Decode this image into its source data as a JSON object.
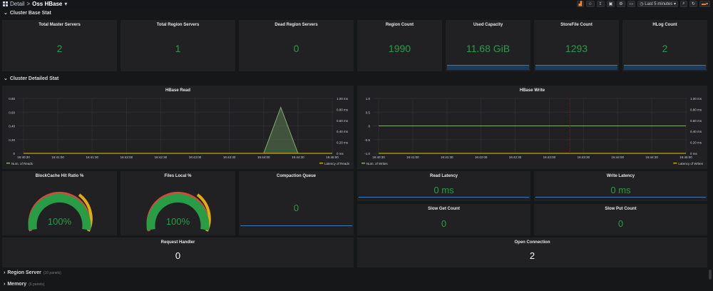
{
  "header": {
    "crumb_root": "Detail",
    "crumb_sep": ">",
    "crumb_title": "Oss HBase",
    "time_range": "Last 5 minutes"
  },
  "rows": {
    "base": "Cluster Base Stat",
    "detailed": "Cluster Detailed Stat",
    "region_server": "Region Server",
    "region_server_count": "(10 panels)",
    "memory": "Memory",
    "memory_count": "(6 panels)"
  },
  "stats": {
    "total_master": {
      "title": "Total Master Servers",
      "value": "2"
    },
    "total_region": {
      "title": "Total Region Servers",
      "value": "1"
    },
    "dead_region": {
      "title": "Dead Region Servers",
      "value": "0"
    },
    "region_count": {
      "title": "Region Count",
      "value": "1990"
    },
    "used_capacity": {
      "title": "Used Capacity",
      "value": "11.68 GiB"
    },
    "storefile_count": {
      "title": "StoreFile Count",
      "value": "1293"
    },
    "hlog_count": {
      "title": "HLog Count",
      "value": "2"
    }
  },
  "charts": {
    "read": {
      "title": "HBase Read",
      "legend_left": "Num. of Reads",
      "legend_right": "Latency of Reads",
      "y_left": [
        "0.80",
        "0.60",
        "0.40",
        "0.20",
        "0"
      ],
      "y_right": [
        "1.00 ms",
        "0.80 ms",
        "0.60 ms",
        "0.40 ms",
        "0.20 ms",
        "0 ms"
      ],
      "x_ticks": [
        "16:40:30",
        "16:41:00",
        "16:41:30",
        "16:42:00",
        "16:42:30",
        "16:43:00",
        "16:43:30",
        "16:44:00",
        "16:44:30",
        "16:45:00"
      ]
    },
    "write": {
      "title": "HBase Write",
      "legend_left": "Num. of Writes",
      "legend_right": "Latency of Writes",
      "y_left": [
        "1.0",
        "0.5",
        "0",
        "-0.5",
        "-1.0"
      ],
      "y_right": [
        "1.00 ms",
        "0.80 ms",
        "0.60 ms",
        "0.40 ms",
        "0.20 ms",
        "0 ms"
      ],
      "x_ticks": [
        "16:40:30",
        "16:41:00",
        "16:41:30",
        "16:42:00",
        "16:42:30",
        "16:43:00",
        "16:43:30",
        "16:44:00",
        "16:44:30",
        "16:45:00"
      ]
    }
  },
  "chart_data": [
    {
      "type": "line",
      "title": "HBase Read",
      "x": [
        "16:40:30",
        "16:41:00",
        "16:41:30",
        "16:42:00",
        "16:42:30",
        "16:43:00",
        "16:43:30",
        "16:44:00",
        "16:44:15",
        "16:44:30",
        "16:45:00"
      ],
      "series": [
        {
          "name": "Num. of Reads",
          "values": [
            0,
            0,
            0,
            0,
            0,
            0,
            0,
            0,
            0.67,
            0,
            0
          ]
        },
        {
          "name": "Latency of Reads",
          "values": [
            0,
            0,
            0,
            0,
            0,
            0,
            0,
            0,
            0,
            0,
            0
          ]
        }
      ],
      "ylim": [
        0,
        0.8
      ],
      "y2lim": [
        0,
        1.0
      ]
    },
    {
      "type": "line",
      "title": "HBase Write",
      "x": [
        "16:40:30",
        "16:41:00",
        "16:41:30",
        "16:42:00",
        "16:42:30",
        "16:43:00",
        "16:43:30",
        "16:44:00",
        "16:44:30",
        "16:45:00"
      ],
      "series": [
        {
          "name": "Num. of Writes",
          "values": [
            0,
            0,
            0,
            0,
            0,
            0,
            0,
            0,
            0,
            0
          ]
        },
        {
          "name": "Latency of Writes",
          "values": [
            0,
            0,
            0,
            0,
            0,
            0,
            0,
            0,
            0,
            0
          ]
        }
      ],
      "ylim": [
        -1.0,
        1.0
      ],
      "y2lim": [
        0,
        1.0
      ]
    }
  ],
  "gauges": {
    "blockcache": {
      "title": "BlockCache Hit Ratio %",
      "value": "100%",
      "percent": 100
    },
    "files_local": {
      "title": "Files Local %",
      "value": "100%",
      "percent": 100
    }
  },
  "small_stats": {
    "compaction": {
      "title": "Compaction Queue",
      "value": "0"
    },
    "read_latency": {
      "title": "Read Latency",
      "value": "0 ms"
    },
    "write_latency": {
      "title": "Write Latency",
      "value": "0 ms"
    },
    "slow_get": {
      "title": "Slow Get Count",
      "value": "0"
    },
    "slow_put": {
      "title": "Slow Put Count",
      "value": "0"
    },
    "request_handler": {
      "title": "Request Handler",
      "value": "0"
    },
    "open_connection": {
      "title": "Open Connection",
      "value": "2"
    }
  },
  "colors": {
    "green": "#299c46",
    "line_green": "#7eb26d",
    "latency_yellow": "#cca300",
    "blue": "#3a78b5"
  }
}
